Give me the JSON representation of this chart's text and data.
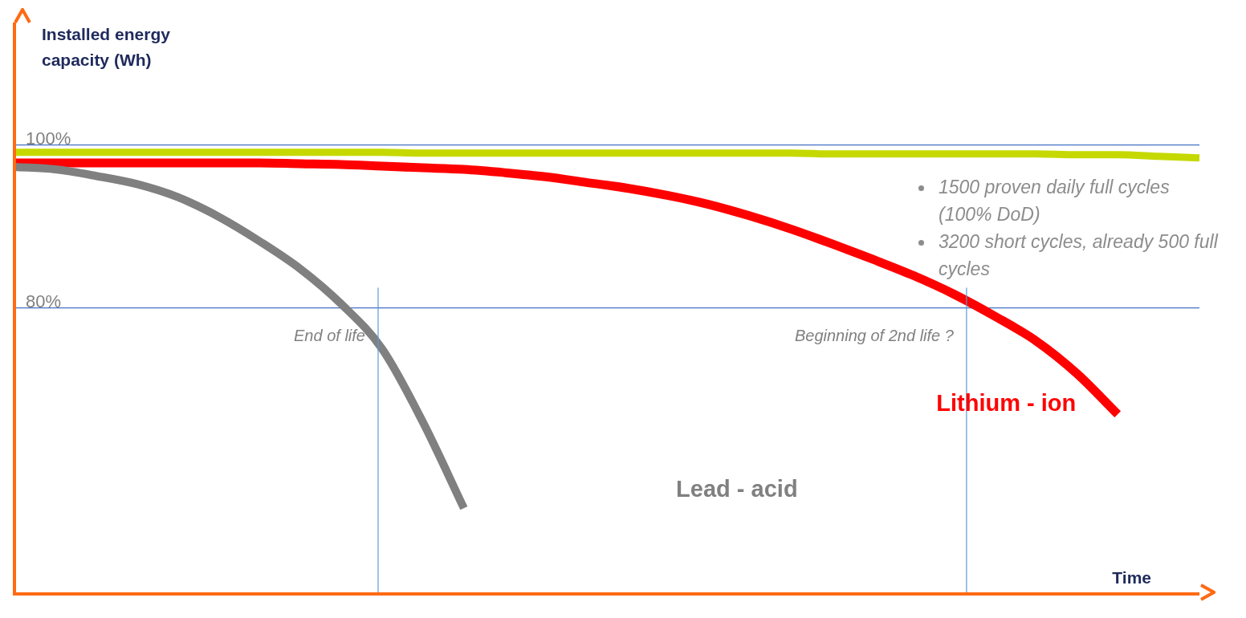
{
  "chart_data": {
    "type": "line",
    "ylabel": "Installed energy capacity (Wh)",
    "xlabel": "Time",
    "categories": [
      null,
      null,
      null,
      null,
      null,
      null,
      null,
      null,
      null,
      null,
      null,
      null,
      null,
      null,
      null,
      null,
      null,
      null,
      null,
      null,
      null,
      null,
      null,
      null,
      null,
      null,
      null,
      null,
      null,
      null
    ],
    "series": [
      {
        "color": "#c5d900",
        "values": [
          99.1,
          99.1,
          99.1,
          99.1,
          99.1,
          99.1,
          99.1,
          99.1,
          99.1,
          99.1,
          99.0,
          99.0,
          99.0,
          99.0,
          99.0,
          99.0,
          99.0,
          99.0,
          99.0,
          99.0,
          98.9,
          98.9,
          98.9,
          98.9,
          98.9,
          98.9,
          98.8,
          98.8,
          98.6,
          98.4
        ]
      },
      {
        "name": "Lithium - ion",
        "color": "#ff0000",
        "values": [
          97.8,
          97.8,
          97.8,
          97.8,
          97.8,
          97.8,
          97.8,
          97.7,
          97.6,
          97.4,
          97.2,
          97.0,
          96.6,
          96.1,
          95.4,
          94.7,
          93.8,
          92.7,
          91.3,
          89.7,
          87.9,
          86.0,
          84.0,
          81.7,
          79.0,
          76.0,
          72.0,
          67.0,
          null,
          null
        ]
      },
      {
        "name": "Lead - acid",
        "color": "#808080",
        "values": [
          97.3,
          97.0,
          96.2,
          95.2,
          93.6,
          91.2,
          88.2,
          84.8,
          80.5,
          75.0,
          66.0,
          55.5,
          null,
          null,
          null,
          null,
          null,
          null,
          null,
          null,
          null,
          null,
          null,
          null,
          null,
          null,
          null,
          null,
          null,
          null
        ]
      }
    ],
    "ylim": [
      45,
      115
    ],
    "yticks": [
      {
        "value": 80,
        "label": "80%"
      },
      {
        "value": 100,
        "label": "100%"
      }
    ],
    "grid": "y",
    "legend": false,
    "marker": "none",
    "line_style": "solid",
    "annotations": [
      "End of life",
      "Beginning of 2nd life ?",
      "1500 proven daily full cycles (100% DoD)",
      "3200 short cycles, already 500 full cycles"
    ]
  }
}
